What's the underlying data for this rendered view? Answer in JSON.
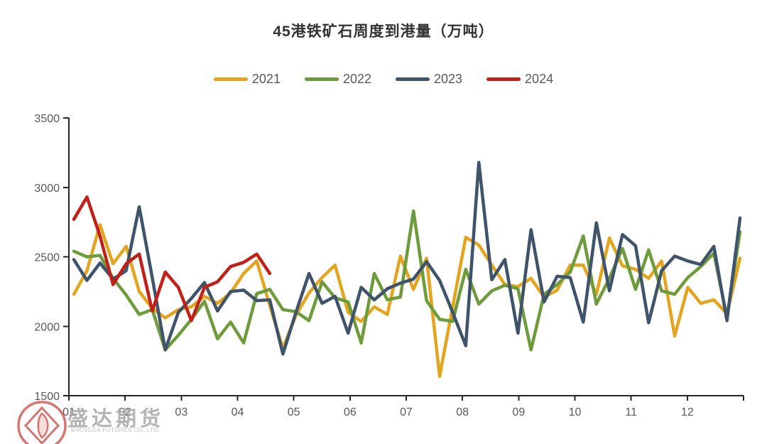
{
  "chart": {
    "title": "45港铁矿石周度到港量（万吨）"
  },
  "watermark": {
    "cn": "盛达期货",
    "en": "SHENGDA FUTURES CO.,LTD."
  },
  "colors": {
    "series_2021": "#E3A51F",
    "series_2022": "#6E9C3C",
    "series_2023": "#3F536B",
    "series_2024": "#C02018",
    "axis_line": "#262626",
    "tick_text": "#595959",
    "title_text": "#333333",
    "watermark_red": "#CD5450",
    "watermark_gray": "#A7A7A7"
  },
  "chart_data": {
    "type": "line",
    "title": "45港铁矿石周度到港量（万吨）",
    "xlabel": "",
    "ylabel": "",
    "x_unit": "week-of-year (weekly data, months 01-12)",
    "x_axis_labels": [
      "01",
      "02",
      "03",
      "04",
      "05",
      "06",
      "07",
      "08",
      "09",
      "10",
      "11",
      "12"
    ],
    "y_ticks": [
      1500,
      2000,
      2500,
      3000,
      3500
    ],
    "ylim": [
      1500,
      3500
    ],
    "grid": false,
    "legend_position": "top",
    "series": [
      {
        "name": "2021",
        "color": "#E3A51F",
        "values": [
          2230,
          2400,
          2730,
          2450,
          2575,
          2250,
          2130,
          2060,
          2120,
          2140,
          2215,
          2165,
          2240,
          2380,
          2470,
          2150,
          1840,
          2080,
          2240,
          2350,
          2440,
          2100,
          2035,
          2140,
          2085,
          2505,
          2265,
          2490,
          1640,
          2140,
          2640,
          2585,
          2440,
          2300,
          2285,
          2345,
          2210,
          2260,
          2440,
          2440,
          2230,
          2635,
          2435,
          2410,
          2345,
          2470,
          1930,
          2280,
          2165,
          2190,
          2090,
          2490
        ]
      },
      {
        "name": "2022",
        "color": "#6E9C3C",
        "values": [
          2540,
          2500,
          2510,
          2345,
          2225,
          2085,
          2120,
          1830,
          1935,
          2050,
          2180,
          1910,
          2030,
          1880,
          2235,
          2265,
          2120,
          2105,
          2040,
          2320,
          2205,
          2175,
          1880,
          2380,
          2190,
          2210,
          2830,
          2185,
          2050,
          2035,
          2410,
          2160,
          2255,
          2295,
          2270,
          1830,
          2230,
          2300,
          2390,
          2650,
          2160,
          2345,
          2560,
          2265,
          2550,
          2255,
          2230,
          2350,
          2430,
          2525,
          2065,
          2680
        ]
      },
      {
        "name": "2023",
        "color": "#3F536B",
        "values": [
          2480,
          2330,
          2455,
          2340,
          2400,
          2860,
          2350,
          1830,
          2100,
          2200,
          2315,
          2110,
          2250,
          2260,
          2185,
          2190,
          1800,
          2100,
          2380,
          2165,
          2215,
          1950,
          2280,
          2190,
          2270,
          2310,
          2340,
          2465,
          2330,
          2100,
          1860,
          3180,
          2335,
          2480,
          1950,
          2695,
          2175,
          2360,
          2350,
          2030,
          2745,
          2255,
          2660,
          2580,
          2025,
          2400,
          2505,
          2470,
          2445,
          2575,
          2040,
          2780
        ]
      },
      {
        "name": "2024",
        "color": "#C02018",
        "values": [
          2770,
          2930,
          2650,
          2300,
          2450,
          2520,
          2110,
          2390,
          2280,
          2040,
          2280,
          2320,
          2430,
          2460,
          2520,
          2380
        ]
      }
    ]
  }
}
